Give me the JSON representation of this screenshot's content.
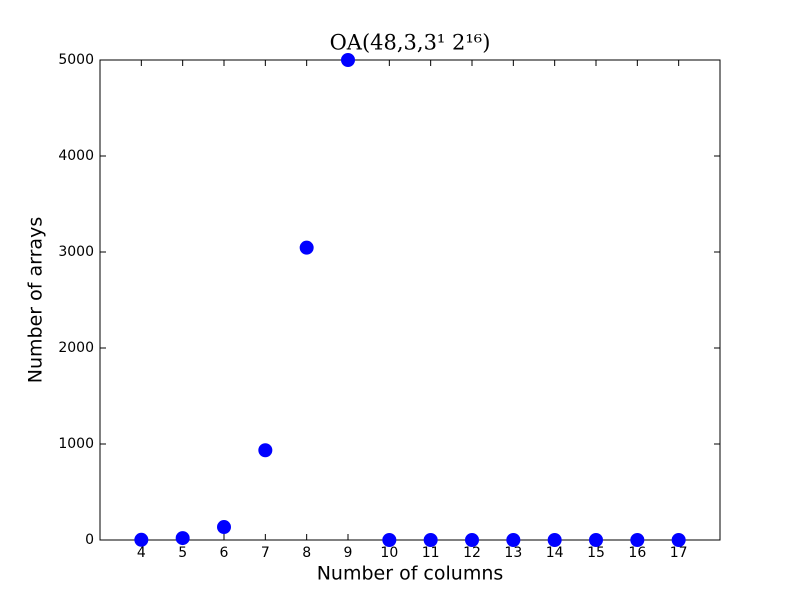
{
  "chart_data": {
    "type": "scatter",
    "title": "OA(48,3,3¹ 2¹⁶)",
    "x_label": "Number of columns",
    "y_label": "Number of arrays",
    "x": [
      4,
      5,
      6,
      7,
      8,
      9,
      10,
      11,
      12,
      13,
      14,
      15,
      16,
      17
    ],
    "values": [
      2,
      20,
      135,
      935,
      3045,
      5000,
      0,
      0,
      0,
      0,
      0,
      0,
      0,
      0
    ],
    "color": "#0000ff",
    "xlim": [
      3,
      18
    ],
    "ylim": [
      0,
      5000
    ],
    "xticks": [
      4,
      5,
      6,
      7,
      8,
      9,
      10,
      11,
      12,
      13,
      14,
      15,
      16,
      17
    ],
    "yticks": [
      0,
      1000,
      2000,
      3000,
      4000,
      5000
    ],
    "grid": false
  }
}
